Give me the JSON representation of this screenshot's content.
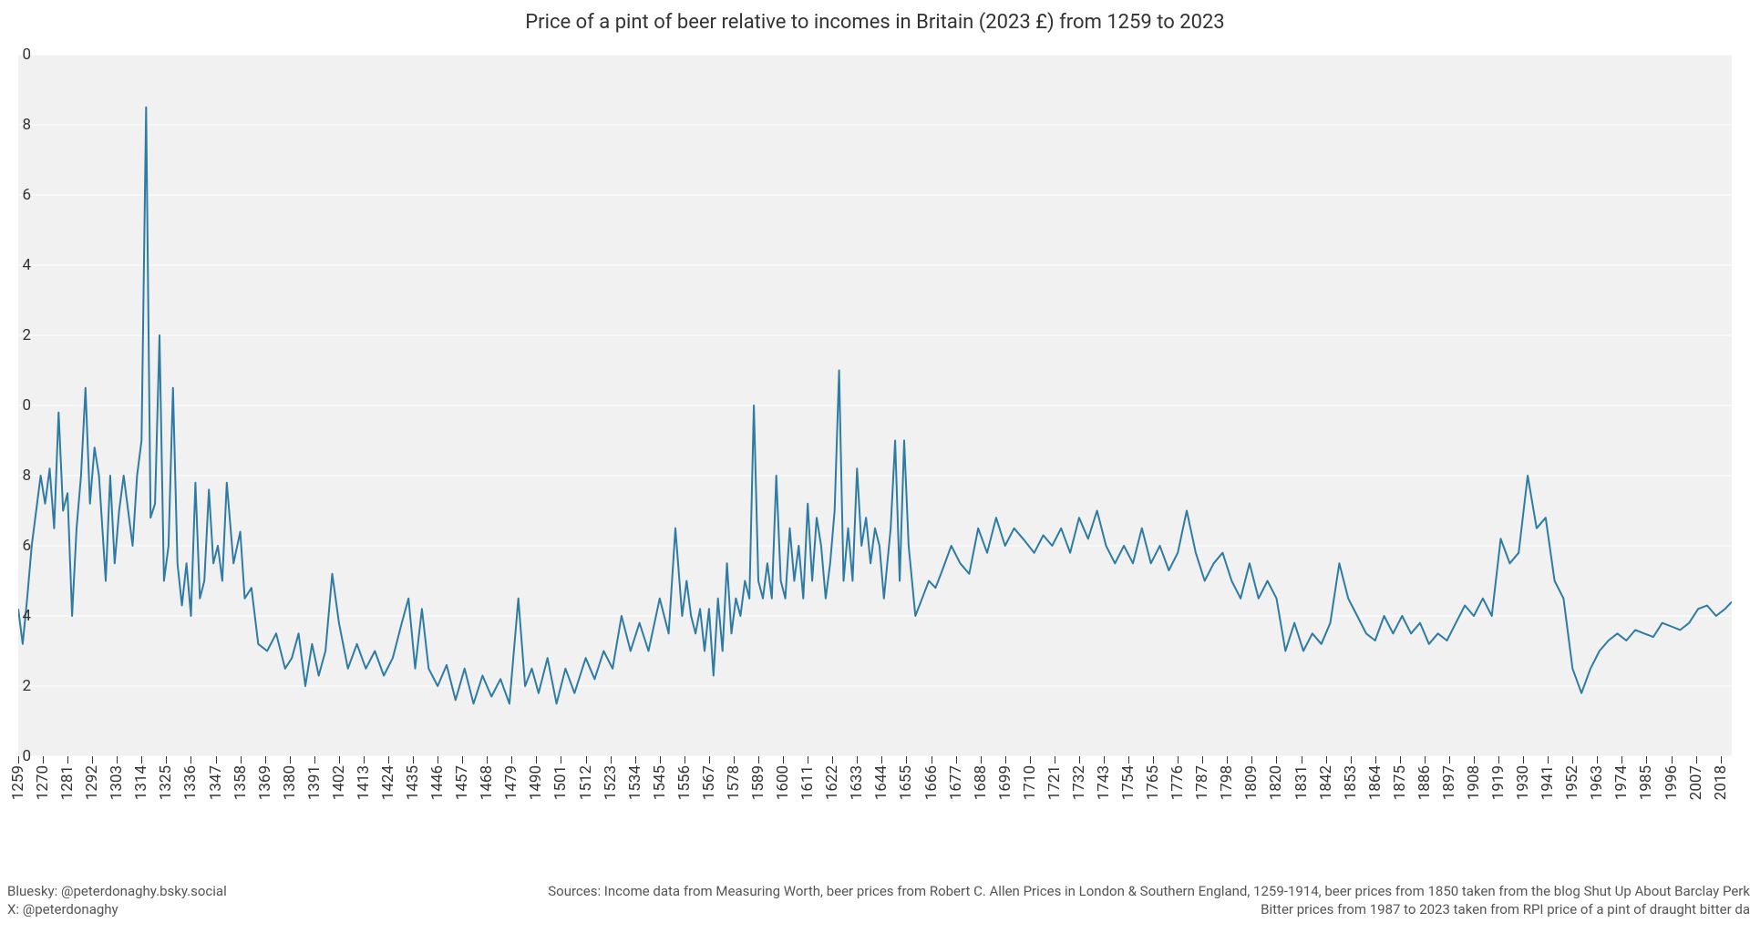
{
  "chart": {
    "type": "line",
    "title": "Price of a pint of beer relative to incomes in Britain (2023 £) from 1259 to 2023",
    "title_fontsize": 22,
    "title_color": "#333333",
    "background_color": "#f1f1f1",
    "grid_color": "#ffffff",
    "grid_width": 1,
    "line_color": "#2e7ba3",
    "line_width": 2,
    "axis_tick_color": "#333333",
    "axis_font_color": "#333333",
    "axis_fontsize": 17,
    "y": {
      "min": 0,
      "max": 20,
      "ticks": [
        0,
        2,
        4,
        6,
        8,
        10,
        12,
        14,
        16,
        18,
        20
      ],
      "tick_labels": [
        "0",
        "2",
        "4",
        "6",
        "8",
        "0",
        "2",
        "4",
        "6",
        "8",
        "0"
      ]
    },
    "x": {
      "min": 1259,
      "max": 2023,
      "tick_step": 11,
      "label_rotation_deg": -90
    },
    "series": [
      {
        "year": 1259,
        "value": 4.2
      },
      {
        "year": 1261,
        "value": 3.2
      },
      {
        "year": 1263,
        "value": 4.5
      },
      {
        "year": 1265,
        "value": 6.0
      },
      {
        "year": 1267,
        "value": 7.0
      },
      {
        "year": 1269,
        "value": 8.0
      },
      {
        "year": 1271,
        "value": 7.2
      },
      {
        "year": 1273,
        "value": 8.2
      },
      {
        "year": 1275,
        "value": 6.5
      },
      {
        "year": 1277,
        "value": 9.8
      },
      {
        "year": 1279,
        "value": 7.0
      },
      {
        "year": 1281,
        "value": 7.5
      },
      {
        "year": 1283,
        "value": 4.0
      },
      {
        "year": 1285,
        "value": 6.5
      },
      {
        "year": 1287,
        "value": 8.0
      },
      {
        "year": 1289,
        "value": 10.5
      },
      {
        "year": 1291,
        "value": 7.2
      },
      {
        "year": 1293,
        "value": 8.8
      },
      {
        "year": 1295,
        "value": 8.0
      },
      {
        "year": 1298,
        "value": 5.0
      },
      {
        "year": 1300,
        "value": 8.0
      },
      {
        "year": 1302,
        "value": 5.5
      },
      {
        "year": 1304,
        "value": 7.0
      },
      {
        "year": 1306,
        "value": 8.0
      },
      {
        "year": 1308,
        "value": 7.0
      },
      {
        "year": 1310,
        "value": 6.0
      },
      {
        "year": 1312,
        "value": 8.0
      },
      {
        "year": 1314,
        "value": 9.0
      },
      {
        "year": 1316,
        "value": 18.5
      },
      {
        "year": 1318,
        "value": 6.8
      },
      {
        "year": 1320,
        "value": 7.2
      },
      {
        "year": 1322,
        "value": 12.0
      },
      {
        "year": 1324,
        "value": 5.0
      },
      {
        "year": 1326,
        "value": 6.0
      },
      {
        "year": 1328,
        "value": 10.5
      },
      {
        "year": 1330,
        "value": 5.5
      },
      {
        "year": 1332,
        "value": 4.3
      },
      {
        "year": 1334,
        "value": 5.5
      },
      {
        "year": 1336,
        "value": 4.0
      },
      {
        "year": 1338,
        "value": 7.8
      },
      {
        "year": 1340,
        "value": 4.5
      },
      {
        "year": 1342,
        "value": 5.0
      },
      {
        "year": 1344,
        "value": 7.6
      },
      {
        "year": 1346,
        "value": 5.5
      },
      {
        "year": 1348,
        "value": 6.0
      },
      {
        "year": 1350,
        "value": 5.0
      },
      {
        "year": 1352,
        "value": 7.8
      },
      {
        "year": 1355,
        "value": 5.5
      },
      {
        "year": 1358,
        "value": 6.4
      },
      {
        "year": 1360,
        "value": 4.5
      },
      {
        "year": 1363,
        "value": 4.8
      },
      {
        "year": 1366,
        "value": 3.2
      },
      {
        "year": 1370,
        "value": 3.0
      },
      {
        "year": 1374,
        "value": 3.5
      },
      {
        "year": 1378,
        "value": 2.5
      },
      {
        "year": 1381,
        "value": 2.8
      },
      {
        "year": 1384,
        "value": 3.5
      },
      {
        "year": 1387,
        "value": 2.0
      },
      {
        "year": 1390,
        "value": 3.2
      },
      {
        "year": 1393,
        "value": 2.3
      },
      {
        "year": 1396,
        "value": 3.0
      },
      {
        "year": 1399,
        "value": 5.2
      },
      {
        "year": 1402,
        "value": 3.8
      },
      {
        "year": 1406,
        "value": 2.5
      },
      {
        "year": 1410,
        "value": 3.2
      },
      {
        "year": 1414,
        "value": 2.5
      },
      {
        "year": 1418,
        "value": 3.0
      },
      {
        "year": 1422,
        "value": 2.3
      },
      {
        "year": 1426,
        "value": 2.8
      },
      {
        "year": 1430,
        "value": 3.8
      },
      {
        "year": 1433,
        "value": 4.5
      },
      {
        "year": 1436,
        "value": 2.5
      },
      {
        "year": 1439,
        "value": 4.2
      },
      {
        "year": 1442,
        "value": 2.5
      },
      {
        "year": 1446,
        "value": 2.0
      },
      {
        "year": 1450,
        "value": 2.6
      },
      {
        "year": 1454,
        "value": 1.6
      },
      {
        "year": 1458,
        "value": 2.5
      },
      {
        "year": 1462,
        "value": 1.5
      },
      {
        "year": 1466,
        "value": 2.3
      },
      {
        "year": 1470,
        "value": 1.7
      },
      {
        "year": 1474,
        "value": 2.2
      },
      {
        "year": 1478,
        "value": 1.5
      },
      {
        "year": 1482,
        "value": 4.5
      },
      {
        "year": 1485,
        "value": 2.0
      },
      {
        "year": 1488,
        "value": 2.5
      },
      {
        "year": 1491,
        "value": 1.8
      },
      {
        "year": 1495,
        "value": 2.8
      },
      {
        "year": 1499,
        "value": 1.5
      },
      {
        "year": 1503,
        "value": 2.5
      },
      {
        "year": 1507,
        "value": 1.8
      },
      {
        "year": 1512,
        "value": 2.8
      },
      {
        "year": 1516,
        "value": 2.2
      },
      {
        "year": 1520,
        "value": 3.0
      },
      {
        "year": 1524,
        "value": 2.5
      },
      {
        "year": 1528,
        "value": 4.0
      },
      {
        "year": 1532,
        "value": 3.0
      },
      {
        "year": 1536,
        "value": 3.8
      },
      {
        "year": 1540,
        "value": 3.0
      },
      {
        "year": 1545,
        "value": 4.5
      },
      {
        "year": 1549,
        "value": 3.5
      },
      {
        "year": 1552,
        "value": 6.5
      },
      {
        "year": 1555,
        "value": 4.0
      },
      {
        "year": 1557,
        "value": 5.0
      },
      {
        "year": 1559,
        "value": 4.0
      },
      {
        "year": 1561,
        "value": 3.5
      },
      {
        "year": 1563,
        "value": 4.2
      },
      {
        "year": 1565,
        "value": 3.0
      },
      {
        "year": 1567,
        "value": 4.2
      },
      {
        "year": 1569,
        "value": 2.3
      },
      {
        "year": 1571,
        "value": 4.5
      },
      {
        "year": 1573,
        "value": 3.0
      },
      {
        "year": 1575,
        "value": 5.5
      },
      {
        "year": 1577,
        "value": 3.5
      },
      {
        "year": 1579,
        "value": 4.5
      },
      {
        "year": 1581,
        "value": 4.0
      },
      {
        "year": 1583,
        "value": 5.0
      },
      {
        "year": 1585,
        "value": 4.5
      },
      {
        "year": 1587,
        "value": 10.0
      },
      {
        "year": 1589,
        "value": 5.0
      },
      {
        "year": 1591,
        "value": 4.5
      },
      {
        "year": 1593,
        "value": 5.5
      },
      {
        "year": 1595,
        "value": 4.5
      },
      {
        "year": 1597,
        "value": 8.0
      },
      {
        "year": 1599,
        "value": 5.0
      },
      {
        "year": 1601,
        "value": 4.5
      },
      {
        "year": 1603,
        "value": 6.5
      },
      {
        "year": 1605,
        "value": 5.0
      },
      {
        "year": 1607,
        "value": 6.0
      },
      {
        "year": 1609,
        "value": 4.5
      },
      {
        "year": 1611,
        "value": 7.2
      },
      {
        "year": 1613,
        "value": 5.0
      },
      {
        "year": 1615,
        "value": 6.8
      },
      {
        "year": 1617,
        "value": 6.0
      },
      {
        "year": 1619,
        "value": 4.5
      },
      {
        "year": 1621,
        "value": 5.5
      },
      {
        "year": 1623,
        "value": 7.0
      },
      {
        "year": 1625,
        "value": 11.0
      },
      {
        "year": 1627,
        "value": 5.0
      },
      {
        "year": 1629,
        "value": 6.5
      },
      {
        "year": 1631,
        "value": 5.0
      },
      {
        "year": 1633,
        "value": 8.2
      },
      {
        "year": 1635,
        "value": 6.0
      },
      {
        "year": 1637,
        "value": 6.8
      },
      {
        "year": 1639,
        "value": 5.5
      },
      {
        "year": 1641,
        "value": 6.5
      },
      {
        "year": 1643,
        "value": 6.0
      },
      {
        "year": 1645,
        "value": 4.5
      },
      {
        "year": 1648,
        "value": 6.5
      },
      {
        "year": 1650,
        "value": 9.0
      },
      {
        "year": 1652,
        "value": 5.0
      },
      {
        "year": 1654,
        "value": 9.0
      },
      {
        "year": 1656,
        "value": 6.0
      },
      {
        "year": 1659,
        "value": 4.0
      },
      {
        "year": 1662,
        "value": 4.5
      },
      {
        "year": 1665,
        "value": 5.0
      },
      {
        "year": 1668,
        "value": 4.8
      },
      {
        "year": 1671,
        "value": 5.3
      },
      {
        "year": 1675,
        "value": 6.0
      },
      {
        "year": 1679,
        "value": 5.5
      },
      {
        "year": 1683,
        "value": 5.2
      },
      {
        "year": 1687,
        "value": 6.5
      },
      {
        "year": 1691,
        "value": 5.8
      },
      {
        "year": 1695,
        "value": 6.8
      },
      {
        "year": 1699,
        "value": 6.0
      },
      {
        "year": 1703,
        "value": 6.5
      },
      {
        "year": 1707,
        "value": 6.2
      },
      {
        "year": 1712,
        "value": 5.8
      },
      {
        "year": 1716,
        "value": 6.3
      },
      {
        "year": 1720,
        "value": 6.0
      },
      {
        "year": 1724,
        "value": 6.5
      },
      {
        "year": 1728,
        "value": 5.8
      },
      {
        "year": 1732,
        "value": 6.8
      },
      {
        "year": 1736,
        "value": 6.2
      },
      {
        "year": 1740,
        "value": 7.0
      },
      {
        "year": 1744,
        "value": 6.0
      },
      {
        "year": 1748,
        "value": 5.5
      },
      {
        "year": 1752,
        "value": 6.0
      },
      {
        "year": 1756,
        "value": 5.5
      },
      {
        "year": 1760,
        "value": 6.5
      },
      {
        "year": 1764,
        "value": 5.5
      },
      {
        "year": 1768,
        "value": 6.0
      },
      {
        "year": 1772,
        "value": 5.3
      },
      {
        "year": 1776,
        "value": 5.8
      },
      {
        "year": 1780,
        "value": 7.0
      },
      {
        "year": 1784,
        "value": 5.8
      },
      {
        "year": 1788,
        "value": 5.0
      },
      {
        "year": 1792,
        "value": 5.5
      },
      {
        "year": 1796,
        "value": 5.8
      },
      {
        "year": 1800,
        "value": 5.0
      },
      {
        "year": 1804,
        "value": 4.5
      },
      {
        "year": 1808,
        "value": 5.5
      },
      {
        "year": 1812,
        "value": 4.5
      },
      {
        "year": 1816,
        "value": 5.0
      },
      {
        "year": 1820,
        "value": 4.5
      },
      {
        "year": 1824,
        "value": 3.0
      },
      {
        "year": 1828,
        "value": 3.8
      },
      {
        "year": 1832,
        "value": 3.0
      },
      {
        "year": 1836,
        "value": 3.5
      },
      {
        "year": 1840,
        "value": 3.2
      },
      {
        "year": 1844,
        "value": 3.8
      },
      {
        "year": 1848,
        "value": 5.5
      },
      {
        "year": 1852,
        "value": 4.5
      },
      {
        "year": 1856,
        "value": 4.0
      },
      {
        "year": 1860,
        "value": 3.5
      },
      {
        "year": 1864,
        "value": 3.3
      },
      {
        "year": 1868,
        "value": 4.0
      },
      {
        "year": 1872,
        "value": 3.5
      },
      {
        "year": 1876,
        "value": 4.0
      },
      {
        "year": 1880,
        "value": 3.5
      },
      {
        "year": 1884,
        "value": 3.8
      },
      {
        "year": 1888,
        "value": 3.2
      },
      {
        "year": 1892,
        "value": 3.5
      },
      {
        "year": 1896,
        "value": 3.3
      },
      {
        "year": 1900,
        "value": 3.8
      },
      {
        "year": 1904,
        "value": 4.3
      },
      {
        "year": 1908,
        "value": 4.0
      },
      {
        "year": 1912,
        "value": 4.5
      },
      {
        "year": 1916,
        "value": 4.0
      },
      {
        "year": 1920,
        "value": 6.2
      },
      {
        "year": 1924,
        "value": 5.5
      },
      {
        "year": 1928,
        "value": 5.8
      },
      {
        "year": 1932,
        "value": 8.0
      },
      {
        "year": 1936,
        "value": 6.5
      },
      {
        "year": 1940,
        "value": 6.8
      },
      {
        "year": 1944,
        "value": 5.0
      },
      {
        "year": 1948,
        "value": 4.5
      },
      {
        "year": 1952,
        "value": 2.5
      },
      {
        "year": 1956,
        "value": 1.8
      },
      {
        "year": 1960,
        "value": 2.5
      },
      {
        "year": 1964,
        "value": 3.0
      },
      {
        "year": 1968,
        "value": 3.3
      },
      {
        "year": 1972,
        "value": 3.5
      },
      {
        "year": 1976,
        "value": 3.3
      },
      {
        "year": 1980,
        "value": 3.6
      },
      {
        "year": 1984,
        "value": 3.5
      },
      {
        "year": 1988,
        "value": 3.4
      },
      {
        "year": 1992,
        "value": 3.8
      },
      {
        "year": 1996,
        "value": 3.7
      },
      {
        "year": 2000,
        "value": 3.6
      },
      {
        "year": 2004,
        "value": 3.8
      },
      {
        "year": 2008,
        "value": 4.2
      },
      {
        "year": 2012,
        "value": 4.3
      },
      {
        "year": 2016,
        "value": 4.0
      },
      {
        "year": 2020,
        "value": 4.2
      },
      {
        "year": 2023,
        "value": 4.4
      }
    ]
  },
  "credits": {
    "bluesky": "Bluesky: @peterdonaghy.bsky.social",
    "x": "X: @peterdonaghy",
    "sources_line1": "Sources: Income data from Measuring Worth, beer prices from Robert C. Allen Prices in London & Southern England, 1259-1914, beer prices from 1850 taken from the blog Shut Up About Barclay Perk",
    "sources_line2": "Bitter prices from 1987 to 2023 taken from RPI price of a pint of draught bitter da"
  }
}
